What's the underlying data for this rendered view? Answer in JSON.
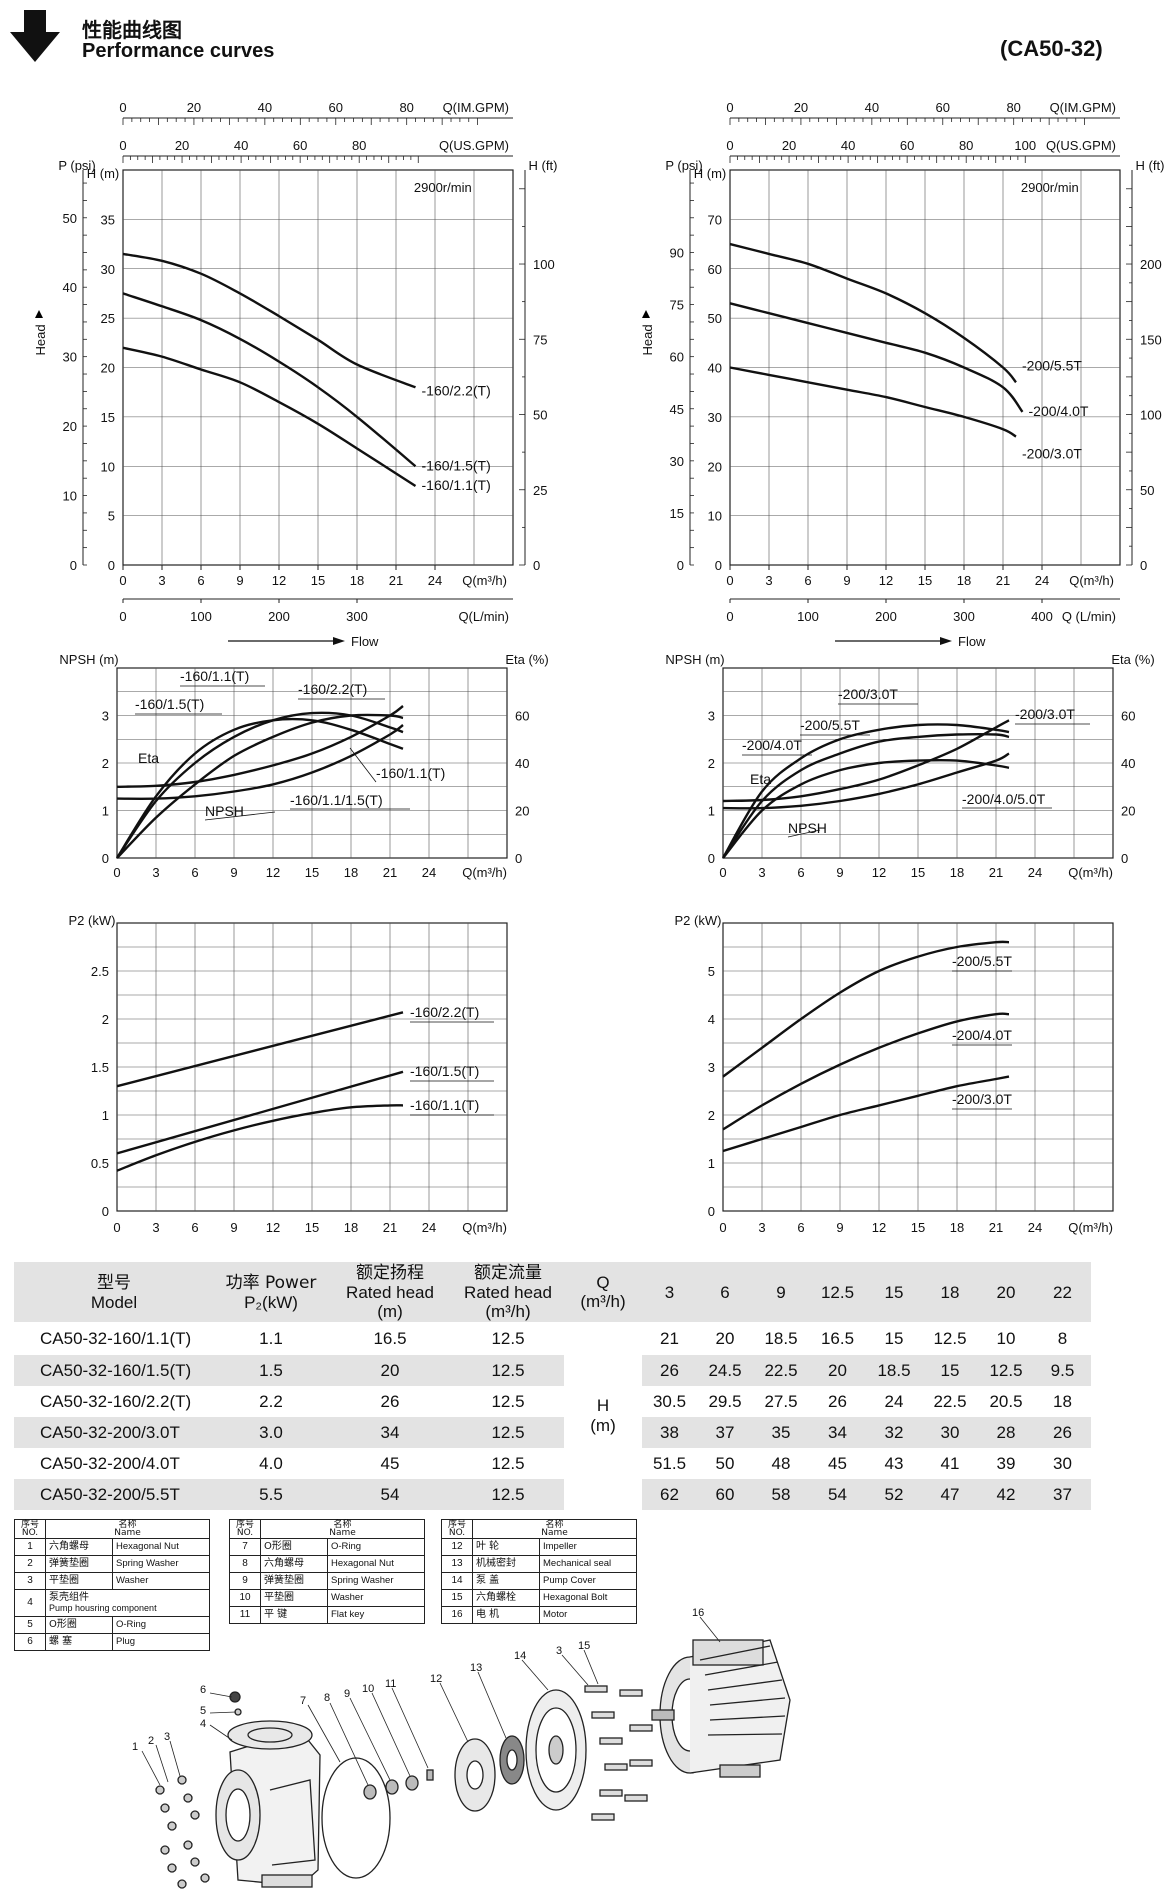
{
  "header": {
    "title_cn": "性能曲线图",
    "title_en": "Performance curves",
    "model": "(CA50-32)"
  },
  "colors": {
    "line": "#111111",
    "grid": "#333333",
    "table_shade": "#e3e3e3"
  },
  "icons": {
    "header_arrow": "down-arrow-icon"
  },
  "chart_data": [
    {
      "id": "head-160",
      "type": "line",
      "speed_label": "2900r/min",
      "xlabel": "Q(m³/h)",
      "x2label": "Q(L/min)",
      "flow_label": "Flow",
      "top1_label": "Q(IM.GPM)",
      "top2_label": "Q(US.GPM)",
      "ylabel": "H (m)",
      "ylabel2": "H (ft)",
      "ylabel_p": "P (psi)",
      "side_label": "Head",
      "xlim": [
        0,
        30
      ],
      "ylim": [
        0,
        40
      ],
      "x_ticks": [
        0,
        3,
        6,
        9,
        12,
        15,
        18,
        21,
        24
      ],
      "x2_ticks": [
        0,
        100,
        200,
        300
      ],
      "x2_factor": 16.667,
      "top1_ticks": [
        0,
        20,
        40,
        60,
        80
      ],
      "top1_factor": 3.666,
      "top2_ticks": [
        0,
        20,
        40,
        60,
        80
      ],
      "top2_factor": 4.403,
      "y_ticks": [
        0,
        5,
        10,
        15,
        20,
        25,
        30,
        35
      ],
      "ft_ticks": [
        0,
        25,
        50,
        75,
        100
      ],
      "ft_factor": 3.281,
      "psi_ticks": [
        0,
        10,
        20,
        30,
        40,
        50
      ],
      "psi_factor": 1.422,
      "series": [
        {
          "name": "-160/2.2(T)",
          "x": [
            0,
            3,
            6,
            9,
            12,
            15,
            18,
            22.5
          ],
          "y": [
            31.5,
            30.8,
            29.5,
            27.5,
            25.2,
            22.8,
            20.3,
            18
          ]
        },
        {
          "name": "-160/1.5(T)",
          "x": [
            0,
            3,
            6,
            9,
            12,
            15,
            18,
            22.5
          ],
          "y": [
            27.5,
            26.2,
            24.8,
            22.9,
            20.6,
            18,
            15,
            10
          ]
        },
        {
          "name": "-160/1.1(T)",
          "x": [
            0,
            3,
            6,
            9,
            12,
            15,
            18,
            22.5
          ],
          "y": [
            22,
            21.1,
            19.8,
            18.5,
            16.5,
            14.3,
            11.8,
            8
          ]
        }
      ]
    },
    {
      "id": "head-200",
      "type": "line",
      "speed_label": "2900r/min",
      "xlabel": "Q(m³/h)",
      "x2label": "Q (L/min)",
      "flow_label": "Flow",
      "top1_label": "Q(IM.GPM)",
      "top2_label": "Q(US.GPM)",
      "ylabel": "H (m)",
      "ylabel2": "H (ft)",
      "ylabel_p": "P (psi)",
      "side_label": "Head",
      "xlim": [
        0,
        30
      ],
      "ylim": [
        0,
        80
      ],
      "x_ticks": [
        0,
        3,
        6,
        9,
        12,
        15,
        18,
        21,
        24
      ],
      "x2_ticks": [
        0,
        100,
        200,
        300,
        400
      ],
      "x2_factor": 16.667,
      "top1_ticks": [
        0,
        20,
        40,
        60,
        80
      ],
      "top1_factor": 3.666,
      "top2_ticks": [
        0,
        20,
        40,
        60,
        80,
        100
      ],
      "top2_factor": 4.403,
      "y_ticks": [
        0,
        10,
        20,
        30,
        40,
        50,
        60,
        70
      ],
      "ft_ticks": [
        0,
        50,
        100,
        150,
        200
      ],
      "ft_factor": 3.281,
      "psi_ticks": [
        0,
        15,
        30,
        45,
        60,
        75,
        90
      ],
      "psi_factor": 1.422,
      "series": [
        {
          "name": "-200/5.5T",
          "x": [
            0,
            3,
            6,
            9,
            12,
            15,
            18,
            21,
            22
          ],
          "y": [
            65,
            63,
            61,
            58,
            55,
            51,
            46,
            40,
            37
          ]
        },
        {
          "name": "-200/4.0T",
          "x": [
            0,
            3,
            6,
            9,
            12,
            15,
            18,
            21,
            22.5
          ],
          "y": [
            53,
            51,
            49,
            47,
            45,
            43,
            40,
            36,
            31
          ]
        },
        {
          "name": "-200/3.0T",
          "x": [
            0,
            3,
            6,
            9,
            12,
            15,
            18,
            21,
            22
          ],
          "y": [
            40,
            38.5,
            37,
            35.5,
            34,
            32,
            30,
            27.5,
            26
          ]
        }
      ]
    },
    {
      "id": "npsh-160",
      "type": "line",
      "xlabel": "Q(m³/h)",
      "ylabel": "NPSH (m)",
      "ylabel2": "Eta (%)",
      "xlim": [
        0,
        30
      ],
      "ylim": [
        0,
        4
      ],
      "y2lim": [
        0,
        80
      ],
      "x_ticks": [
        0,
        3,
        6,
        9,
        12,
        15,
        18,
        21,
        24
      ],
      "y_ticks": [
        0,
        1,
        2,
        3
      ],
      "y2_ticks": [
        0,
        20,
        40,
        60
      ],
      "labels": [
        "-160/1.1(T)",
        "-160/2.2(T)",
        "-160/1.5(T)",
        "Eta",
        "NPSH",
        "-160/1.1(T)",
        "-160/1.1/1.5(T)"
      ],
      "series": [
        {
          "name": "Eta -160/1.1(T)",
          "axis": "eta",
          "x": [
            0,
            3,
            6,
            9,
            12,
            15,
            18,
            21,
            22
          ],
          "y": [
            0,
            26,
            44,
            54,
            58,
            58,
            54,
            48,
            46
          ]
        },
        {
          "name": "Eta -160/1.5(T)",
          "axis": "eta",
          "x": [
            0,
            3,
            6,
            9,
            12,
            15,
            18,
            21,
            22
          ],
          "y": [
            0,
            24,
            40,
            51,
            58,
            61,
            60,
            55,
            53
          ]
        },
        {
          "name": "Eta -160/2.2(T)",
          "axis": "eta",
          "x": [
            0,
            3,
            6,
            9,
            12,
            15,
            18,
            21,
            22
          ],
          "y": [
            0,
            17,
            31,
            43,
            51,
            57,
            60,
            60,
            59
          ]
        },
        {
          "name": "NPSH -160/1.1/1.5(T)",
          "axis": "npsh",
          "x": [
            0,
            3,
            6,
            9,
            12,
            15,
            18,
            21,
            22
          ],
          "y": [
            1.5,
            1.52,
            1.6,
            1.75,
            1.95,
            2.2,
            2.55,
            3,
            3.2
          ]
        },
        {
          "name": "NPSH -160/2.2(T)",
          "axis": "npsh",
          "x": [
            0,
            3,
            6,
            9,
            12,
            15,
            18,
            21,
            22
          ],
          "y": [
            1.25,
            1.25,
            1.3,
            1.4,
            1.55,
            1.8,
            2.15,
            2.6,
            2.8
          ]
        }
      ]
    },
    {
      "id": "npsh-200",
      "type": "line",
      "xlabel": "Q(m³/h)",
      "ylabel": "NPSH (m)",
      "ylabel2": "Eta (%)",
      "xlim": [
        0,
        30
      ],
      "ylim": [
        0,
        4
      ],
      "y2lim": [
        0,
        80
      ],
      "x_ticks": [
        0,
        3,
        6,
        9,
        12,
        15,
        18,
        21,
        24
      ],
      "y_ticks": [
        0,
        1,
        2,
        3
      ],
      "y2_ticks": [
        0,
        20,
        40,
        60
      ],
      "labels": [
        "-200/3.0T",
        "-200/3.0T",
        "-200/5.5T",
        "-200/4.0T",
        "Eta",
        "NPSH",
        "-200/4.0/5.0T"
      ],
      "series": [
        {
          "name": "Eta -200/3.0T",
          "axis": "eta",
          "x": [
            0,
            3,
            6,
            9,
            12,
            15,
            18,
            21,
            22
          ],
          "y": [
            0,
            28,
            42,
            50,
            54,
            56,
            56,
            54,
            53
          ]
        },
        {
          "name": "Eta -200/5.5T",
          "axis": "eta",
          "x": [
            0,
            3,
            6,
            9,
            12,
            15,
            18,
            21,
            22
          ],
          "y": [
            0,
            24,
            37,
            44,
            49,
            51,
            52,
            52,
            51
          ]
        },
        {
          "name": "Eta -200/4.0T",
          "axis": "eta",
          "x": [
            0,
            3,
            6,
            9,
            12,
            15,
            18,
            21,
            22
          ],
          "y": [
            0,
            20,
            31,
            37,
            40,
            41,
            41,
            39,
            38
          ]
        },
        {
          "name": "NPSH -200/3.0T",
          "axis": "npsh",
          "x": [
            0,
            3,
            6,
            9,
            12,
            15,
            18,
            21,
            22
          ],
          "y": [
            1.2,
            1.22,
            1.3,
            1.45,
            1.65,
            1.95,
            2.3,
            2.75,
            2.9
          ]
        },
        {
          "name": "NPSH -200/4.0/5.0T",
          "axis": "npsh",
          "x": [
            0,
            3,
            6,
            9,
            12,
            15,
            18,
            21,
            22
          ],
          "y": [
            1.05,
            1.05,
            1.1,
            1.2,
            1.35,
            1.55,
            1.8,
            2.05,
            2.2
          ]
        }
      ]
    },
    {
      "id": "power-160",
      "type": "line",
      "xlabel": "Q(m³/h)",
      "ylabel": "P2 (kW)",
      "xlim": [
        0,
        30
      ],
      "ylim": [
        0,
        3
      ],
      "x_ticks": [
        0,
        3,
        6,
        9,
        12,
        15,
        18,
        21,
        24
      ],
      "y_ticks": [
        0,
        0.5,
        1.0,
        1.5,
        2.0,
        2.5
      ],
      "series": [
        {
          "name": "-160/2.2(T)",
          "x": [
            0,
            22
          ],
          "y": [
            1.3,
            2.07
          ]
        },
        {
          "name": "-160/1.5(T)",
          "x": [
            0,
            22
          ],
          "y": [
            0.6,
            1.45
          ]
        },
        {
          "name": "-160/1.1(T)",
          "x": [
            0,
            3,
            6,
            9,
            12,
            15,
            18,
            21,
            22
          ],
          "y": [
            0.42,
            0.58,
            0.72,
            0.84,
            0.94,
            1.02,
            1.08,
            1.1,
            1.1
          ]
        }
      ]
    },
    {
      "id": "power-200",
      "type": "line",
      "xlabel": "Q(m³/h)",
      "ylabel": "P2 (kW)",
      "xlim": [
        0,
        30
      ],
      "ylim": [
        0,
        6
      ],
      "x_ticks": [
        0,
        3,
        6,
        9,
        12,
        15,
        18,
        21,
        24
      ],
      "y_ticks": [
        0,
        1.0,
        2.0,
        3.0,
        4.0,
        5.0
      ],
      "series": [
        {
          "name": "-200/5.5T",
          "x": [
            0,
            3,
            6,
            9,
            12,
            15,
            18,
            21,
            22
          ],
          "y": [
            2.8,
            3.4,
            4.0,
            4.55,
            5.0,
            5.3,
            5.5,
            5.6,
            5.6
          ]
        },
        {
          "name": "-200/4.0T",
          "x": [
            0,
            3,
            6,
            9,
            12,
            15,
            18,
            21,
            22
          ],
          "y": [
            1.7,
            2.2,
            2.65,
            3.05,
            3.4,
            3.7,
            3.95,
            4.1,
            4.1
          ]
        },
        {
          "name": "-200/3.0T",
          "x": [
            0,
            3,
            6,
            9,
            12,
            15,
            18,
            21,
            22
          ],
          "y": [
            1.25,
            1.5,
            1.75,
            2.0,
            2.2,
            2.4,
            2.6,
            2.75,
            2.8
          ]
        }
      ]
    }
  ],
  "spec_table": {
    "head_model": {
      "cn": "型号",
      "en": "Model"
    },
    "head_power": {
      "cn": "功率 Power",
      "en": "P₂(kW)"
    },
    "head_rhead": {
      "cn": "额定扬程",
      "en": "Rated head",
      "unit": "(m)"
    },
    "head_rflow": {
      "cn": "额定流量",
      "en": "Rated head",
      "unit": "(m³/h)"
    },
    "head_q": {
      "l1": "Q",
      "l2": "(m³/h)"
    },
    "h_label": {
      "l1": "H",
      "l2": "(m)"
    },
    "q_values": [
      "3",
      "6",
      "9",
      "12.5",
      "15",
      "18",
      "20",
      "22"
    ],
    "rows": [
      {
        "model": "CA50-32-160/1.1(T)",
        "power": "1.1",
        "head": "16.5",
        "flow": "12.5",
        "h": [
          "21",
          "20",
          "18.5",
          "16.5",
          "15",
          "12.5",
          "10",
          "8"
        ]
      },
      {
        "model": "CA50-32-160/1.5(T)",
        "power": "1.5",
        "head": "20",
        "flow": "12.5",
        "h": [
          "26",
          "24.5",
          "22.5",
          "20",
          "18.5",
          "15",
          "12.5",
          "9.5"
        ]
      },
      {
        "model": "CA50-32-160/2.2(T)",
        "power": "2.2",
        "head": "26",
        "flow": "12.5",
        "h": [
          "30.5",
          "29.5",
          "27.5",
          "26",
          "24",
          "22.5",
          "20.5",
          "18"
        ]
      },
      {
        "model": "CA50-32-200/3.0T",
        "power": "3.0",
        "head": "34",
        "flow": "12.5",
        "h": [
          "38",
          "37",
          "35",
          "34",
          "32",
          "30",
          "28",
          "26"
        ]
      },
      {
        "model": "CA50-32-200/4.0T",
        "power": "4.0",
        "head": "45",
        "flow": "12.5",
        "h": [
          "51.5",
          "50",
          "48",
          "45",
          "43",
          "41",
          "39",
          "30"
        ]
      },
      {
        "model": "CA50-32-200/5.5T",
        "power": "5.5",
        "head": "54",
        "flow": "12.5",
        "h": [
          "62",
          "60",
          "58",
          "54",
          "52",
          "47",
          "42",
          "37"
        ]
      }
    ]
  },
  "parts_header": {
    "no_cn": "序号",
    "no_en": "NO.",
    "name_cn": "名称",
    "name_en": "Name"
  },
  "parts_tables": [
    [
      {
        "no": "1",
        "cn": "六角螺母",
        "en": "Hexagonal Nut"
      },
      {
        "no": "2",
        "cn": "弹簧垫圈",
        "en": "Spring Washer"
      },
      {
        "no": "3",
        "cn": "平垫圈",
        "en": "Washer"
      },
      {
        "no": "4",
        "cn": "泵壳组件",
        "en": "Pump housring component"
      },
      {
        "no": "5",
        "cn": "O形圈",
        "en": "O-Ring"
      },
      {
        "no": "6",
        "cn": "螺 塞",
        "en": "Plug"
      }
    ],
    [
      {
        "no": "7",
        "cn": "O形圈",
        "en": "O-Ring"
      },
      {
        "no": "8",
        "cn": "六角螺母",
        "en": "Hexagonal Nut"
      },
      {
        "no": "9",
        "cn": "弹簧垫圈",
        "en": "Spring Washer"
      },
      {
        "no": "10",
        "cn": "平垫圈",
        "en": "Washer"
      },
      {
        "no": "11",
        "cn": "平 键",
        "en": "Flat key"
      }
    ],
    [
      {
        "no": "12",
        "cn": "叶 轮",
        "en": "Impeller"
      },
      {
        "no": "13",
        "cn": "机械密封",
        "en": "Mechanical seal"
      },
      {
        "no": "14",
        "cn": "泵 盖",
        "en": "Pump Cover"
      },
      {
        "no": "15",
        "cn": "六角螺栓",
        "en": "Hexagonal Bolt"
      },
      {
        "no": "16",
        "cn": "电 机",
        "en": "Motor"
      }
    ]
  ],
  "exploded_callouts": [
    "1",
    "2",
    "3",
    "4",
    "5",
    "6",
    "7",
    "8",
    "9",
    "10",
    "11",
    "12",
    "13",
    "14",
    "3",
    "15",
    "16"
  ]
}
